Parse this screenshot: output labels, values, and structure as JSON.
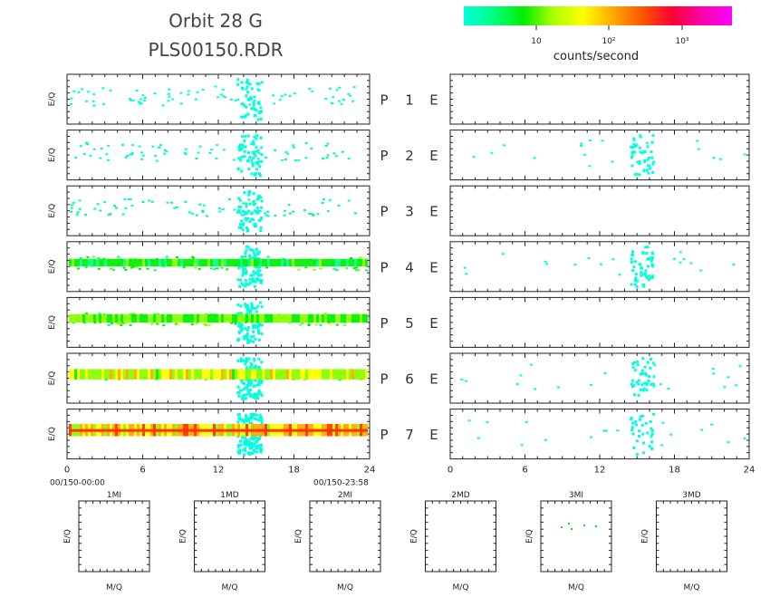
{
  "header": {
    "title_line1": "Orbit 28 G",
    "title_line2": "PLS00150.RDR"
  },
  "colorbar": {
    "label": "counts/second",
    "ticks": [
      "10",
      "10²",
      "10³"
    ],
    "colors": [
      "#00ffdd",
      "#00ff80",
      "#00ee00",
      "#aaff00",
      "#ffff00",
      "#ffaa00",
      "#ff5500",
      "#ff0033",
      "#ff00aa",
      "#ff00ff"
    ]
  },
  "chart_data": {
    "type": "heatmap",
    "ylabel": "E/Q",
    "time_axis": {
      "ticks": [
        "0",
        "6",
        "12",
        "18",
        "24"
      ],
      "start_label": "00/150-00:00",
      "end_label": "00/150-23:58"
    },
    "rows": [
      {
        "left": "P",
        "num": "1",
        "right": "E",
        "p_intensity": 0.08,
        "e_intensity": 0.0
      },
      {
        "left": "P",
        "num": "2",
        "right": "E",
        "p_intensity": 0.15,
        "e_intensity": 0.2
      },
      {
        "left": "P",
        "num": "3",
        "right": "E",
        "p_intensity": 0.22,
        "e_intensity": 0.0
      },
      {
        "left": "P",
        "num": "4",
        "right": "E",
        "p_intensity": 0.45,
        "e_intensity": 0.3
      },
      {
        "left": "P",
        "num": "5",
        "right": "E",
        "p_intensity": 0.55,
        "e_intensity": 0.0
      },
      {
        "left": "P",
        "num": "6",
        "right": "E",
        "p_intensity": 0.75,
        "e_intensity": 0.15
      },
      {
        "left": "P",
        "num": "7",
        "right": "E",
        "p_intensity": 0.95,
        "e_intensity": 0.05
      }
    ],
    "mq_panels": [
      {
        "title": "1MI",
        "xlabel": "M/Q",
        "ylabel": "E/Q"
      },
      {
        "title": "1MD",
        "xlabel": "M/Q",
        "ylabel": "E/Q"
      },
      {
        "title": "2MI",
        "xlabel": "M/Q",
        "ylabel": "E/Q"
      },
      {
        "title": "2MD",
        "xlabel": "M/Q",
        "ylabel": "E/Q"
      },
      {
        "title": "3MI",
        "xlabel": "M/Q",
        "ylabel": "E/Q"
      },
      {
        "title": "3MD",
        "xlabel": "M/Q",
        "ylabel": "E/Q"
      }
    ]
  }
}
